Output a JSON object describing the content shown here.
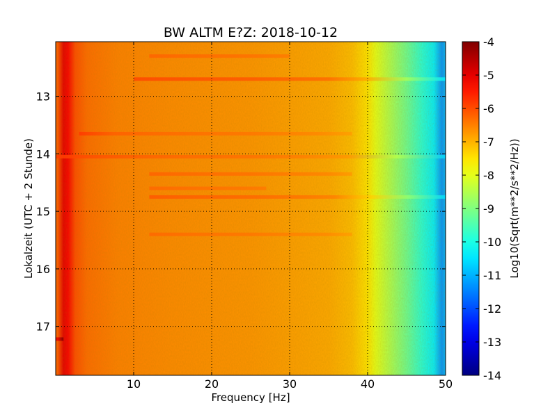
{
  "chart_data": {
    "type": "heatmap",
    "title": "BW ALTM E?Z: 2018-10-12",
    "xlabel": "Frequency [Hz]",
    "ylabel": "Lokalzeit (UTC + 2 Stunde)",
    "xlim": [
      0,
      50
    ],
    "ylim": [
      12.05,
      17.85
    ],
    "y_inverted": true,
    "x_ticks": [
      10,
      20,
      30,
      40,
      50
    ],
    "y_ticks": [
      13,
      14,
      15,
      16,
      17
    ],
    "grid": true,
    "colormap": "jet",
    "colorbar": {
      "label": "Log10(Sqrt(m**2/s**2/Hz))",
      "range": [
        -14,
        -4
      ],
      "ticks": [
        -4,
        -5,
        -6,
        -7,
        -8,
        -9,
        -10,
        -11,
        -12,
        -13,
        -14
      ]
    },
    "frequency_profile": {
      "frequency_hz": [
        0.2,
        1.0,
        1.6,
        2.5,
        4.0,
        8,
        15,
        25,
        35,
        38,
        40,
        41,
        43,
        45,
        47,
        48.5,
        49.5,
        50
      ],
      "log10_value": [
        -6.2,
        -5.0,
        -5.2,
        -6.0,
        -6.3,
        -6.5,
        -6.6,
        -6.7,
        -6.9,
        -7.1,
        -7.5,
        -8.0,
        -8.6,
        -9.2,
        -9.9,
        -10.4,
        -11.3,
        -11.0
      ]
    },
    "bands": [
      {
        "time": 12.7,
        "freq_from": 10,
        "freq_to": 50,
        "delta": 0.6
      },
      {
        "time": 12.3,
        "freq_from": 12,
        "freq_to": 30,
        "delta": 0.35
      },
      {
        "time": 13.65,
        "freq_from": 3,
        "freq_to": 38,
        "delta": 0.3
      },
      {
        "time": 14.05,
        "freq_from": 0,
        "freq_to": 50,
        "delta": 0.35
      },
      {
        "time": 14.35,
        "freq_from": 12,
        "freq_to": 38,
        "delta": 0.35
      },
      {
        "time": 14.6,
        "freq_from": 12,
        "freq_to": 27,
        "delta": 0.3
      },
      {
        "time": 14.75,
        "freq_from": 12,
        "freq_to": 50,
        "delta": 0.45
      },
      {
        "time": 15.4,
        "freq_from": 12,
        "freq_to": 38,
        "delta": 0.3
      },
      {
        "time": 17.22,
        "freq_from": 0,
        "freq_to": 1,
        "delta": 1.1
      }
    ]
  }
}
